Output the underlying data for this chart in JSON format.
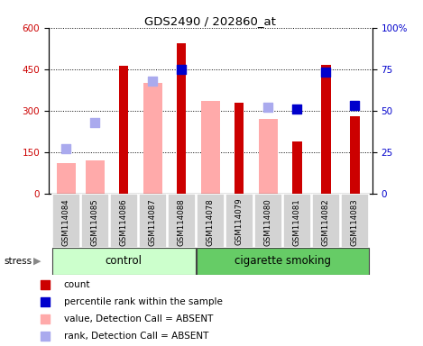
{
  "title": "GDS2490 / 202860_at",
  "samples": [
    "GSM114084",
    "GSM114085",
    "GSM114086",
    "GSM114087",
    "GSM114088",
    "GSM114078",
    "GSM114079",
    "GSM114080",
    "GSM114081",
    "GSM114082",
    "GSM114083"
  ],
  "count": [
    null,
    null,
    462,
    null,
    545,
    null,
    330,
    null,
    190,
    465,
    280
  ],
  "percentile_rank_pct": [
    null,
    null,
    null,
    null,
    75,
    null,
    null,
    null,
    51,
    73,
    53
  ],
  "value_absent": [
    110,
    120,
    null,
    400,
    null,
    335,
    null,
    270,
    null,
    null,
    null
  ],
  "rank_absent_pct": [
    27,
    43,
    null,
    68,
    null,
    null,
    null,
    52,
    null,
    null,
    null
  ],
  "ylim_left": [
    0,
    600
  ],
  "ylim_right": [
    0,
    100
  ],
  "yticks_left": [
    0,
    150,
    300,
    450,
    600
  ],
  "ytick_labels_left": [
    "0",
    "150",
    "300",
    "450",
    "600"
  ],
  "yticks_right": [
    0,
    25,
    50,
    75,
    100
  ],
  "ytick_labels_right": [
    "0",
    "25",
    "50",
    "75",
    "100%"
  ],
  "count_color": "#cc0000",
  "percentile_color": "#0000cc",
  "value_absent_color": "#ffaaaa",
  "rank_absent_color": "#aaaaee",
  "ctrl_color": "#ccffcc",
  "cig_color": "#66cc66",
  "stress_label": "stress"
}
